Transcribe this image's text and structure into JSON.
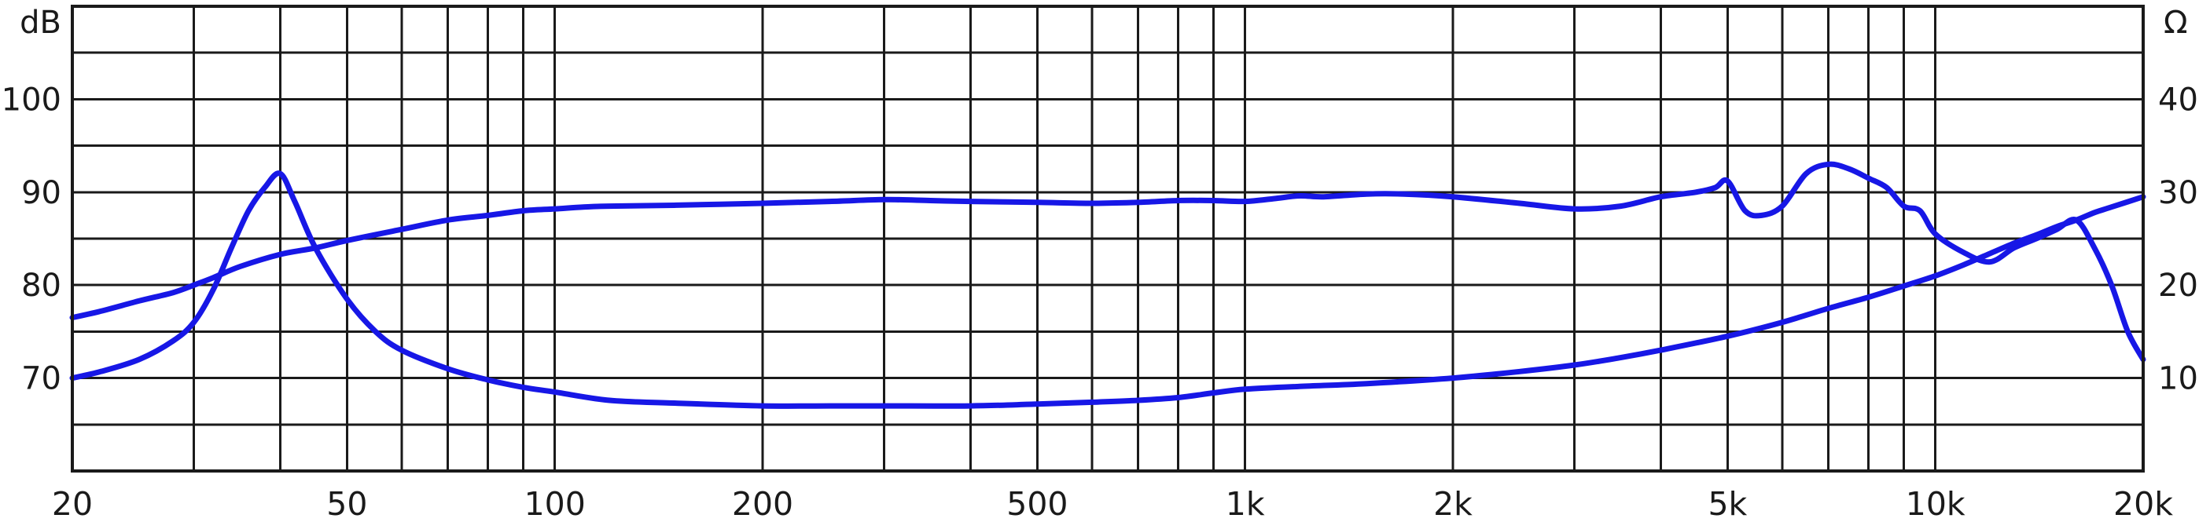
{
  "chart_data": {
    "type": "line",
    "title": "",
    "y_unit_left": "dB",
    "y_unit_right": "Ω",
    "x_scale": "log",
    "xlim": [
      20,
      20000
    ],
    "ylim_left": [
      60,
      110
    ],
    "ylim_right": [
      0,
      50
    ],
    "grid": true,
    "line_color": "#1717e6",
    "x_ticks": [
      {
        "value": 20,
        "label": "20"
      },
      {
        "value": 50,
        "label": "50"
      },
      {
        "value": 100,
        "label": "100"
      },
      {
        "value": 200,
        "label": "200"
      },
      {
        "value": 500,
        "label": "500"
      },
      {
        "value": 1000,
        "label": "1k"
      },
      {
        "value": 2000,
        "label": "2k"
      },
      {
        "value": 5000,
        "label": "5k"
      },
      {
        "value": 10000,
        "label": "10k"
      },
      {
        "value": 20000,
        "label": "20k"
      }
    ],
    "y_ticks_left": [
      {
        "value": 70,
        "label": "70"
      },
      {
        "value": 80,
        "label": "80"
      },
      {
        "value": 90,
        "label": "90"
      },
      {
        "value": 100,
        "label": "100"
      }
    ],
    "y_ticks_right": [
      {
        "value": 10,
        "label": "10"
      },
      {
        "value": 20,
        "label": "20"
      },
      {
        "value": 30,
        "label": "30"
      },
      {
        "value": 40,
        "label": "40"
      }
    ],
    "x_gridlines": [
      20,
      30,
      40,
      50,
      60,
      70,
      80,
      90,
      100,
      200,
      300,
      400,
      500,
      600,
      700,
      800,
      900,
      1000,
      2000,
      3000,
      4000,
      5000,
      6000,
      7000,
      8000,
      9000,
      10000,
      20000
    ],
    "y_gridlines": [
      60,
      65,
      70,
      75,
      80,
      85,
      90,
      95,
      100,
      105,
      110
    ],
    "series": [
      {
        "key": "frequency-response",
        "axis": "left",
        "x": [
          20,
          22,
          25,
          28,
          30,
          32,
          35,
          40,
          45,
          50,
          60,
          70,
          80,
          90,
          100,
          110,
          120,
          150,
          200,
          250,
          300,
          350,
          400,
          500,
          600,
          700,
          800,
          900,
          1000,
          1100,
          1200,
          1300,
          1500,
          1700,
          2000,
          2500,
          3000,
          3500,
          4000,
          4500,
          4800,
          5000,
          5300,
          5600,
          6000,
          6500,
          7000,
          7500,
          8000,
          8500,
          9000,
          9500,
          10000,
          11000,
          12000,
          13000,
          14000,
          15000,
          16000,
          17000,
          18000,
          19000,
          20000
        ],
        "y": [
          76.5,
          77.2,
          78.3,
          79.2,
          80,
          80.8,
          82,
          83.3,
          84,
          84.8,
          86,
          87,
          87.5,
          88,
          88.2,
          88.4,
          88.5,
          88.6,
          88.8,
          89,
          89.2,
          89.1,
          89,
          88.9,
          88.8,
          88.9,
          89.1,
          89.1,
          89,
          89.3,
          89.6,
          89.5,
          89.8,
          89.8,
          89.5,
          88.8,
          88.2,
          88.5,
          89.5,
          90,
          90.5,
          91.2,
          88,
          87.5,
          88.5,
          92,
          93,
          92.5,
          91.5,
          90.5,
          88.5,
          88,
          85.5,
          83.5,
          82.5,
          84,
          85,
          86,
          87,
          84,
          80,
          75,
          72
        ]
      },
      {
        "key": "impedance",
        "axis": "right",
        "x": [
          20,
          22,
          25,
          28,
          30,
          32,
          34,
          36,
          38,
          40,
          42,
          45,
          50,
          55,
          60,
          70,
          80,
          90,
          100,
          120,
          150,
          200,
          250,
          300,
          400,
          500,
          600,
          700,
          800,
          900,
          1000,
          1200,
          1500,
          2000,
          2500,
          3000,
          3500,
          4000,
          5000,
          6000,
          7000,
          8000,
          9000,
          10000,
          11000,
          12000,
          13000,
          14000,
          15000,
          16000,
          17000,
          18000,
          20000
        ],
        "y": [
          10,
          10.7,
          12,
          14,
          16,
          19.5,
          24,
          28,
          30.5,
          32,
          29,
          24,
          18.5,
          15,
          13,
          11,
          9.8,
          9,
          8.5,
          7.6,
          7.3,
          7,
          7,
          7,
          7,
          7.2,
          7.4,
          7.6,
          7.9,
          8.4,
          8.8,
          9.1,
          9.4,
          10,
          10.7,
          11.4,
          12.2,
          13,
          14.5,
          16,
          17.5,
          18.7,
          19.9,
          21,
          22.2,
          23.4,
          24.5,
          25.4,
          26.3,
          27,
          27.8,
          28.4,
          29.5
        ]
      }
    ]
  }
}
